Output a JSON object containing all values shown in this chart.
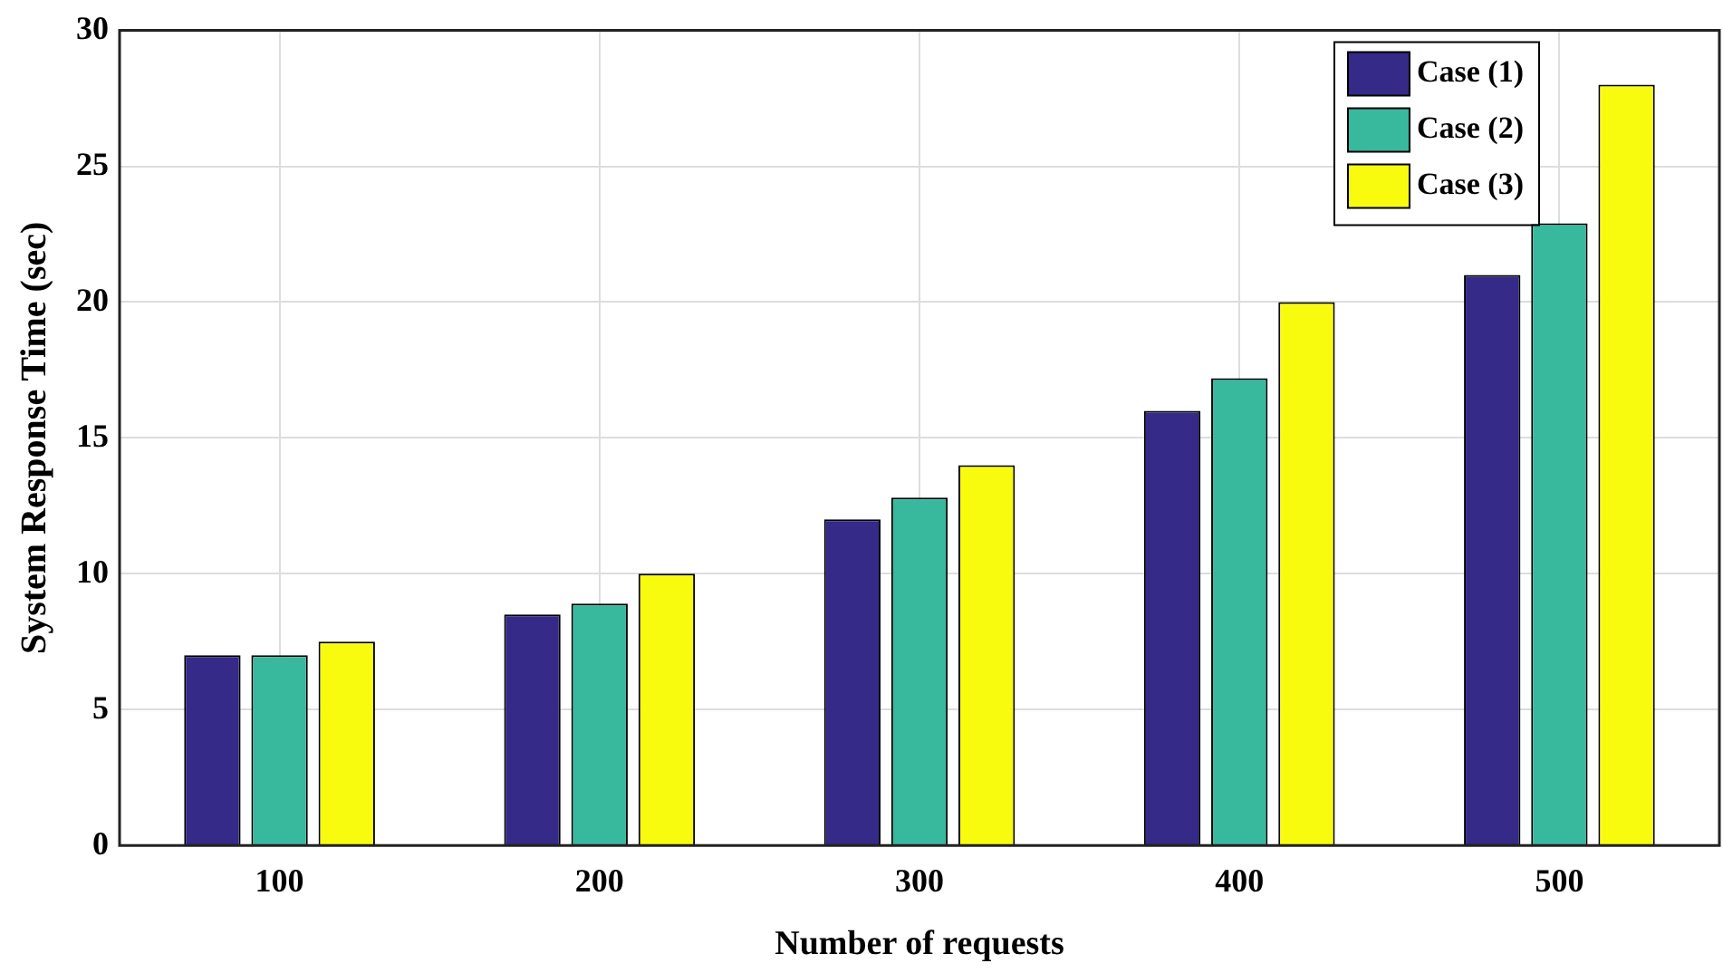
{
  "chart_data": {
    "type": "bar",
    "xlabel": "Number of requests",
    "ylabel": "System Response Time (sec)",
    "categories": [
      "100",
      "200",
      "300",
      "400",
      "500"
    ],
    "series": [
      {
        "name": "Case (1)",
        "color": "#352a87",
        "values": [
          7,
          8.5,
          12,
          16,
          21
        ]
      },
      {
        "name": "Case (2)",
        "color": "#38b99e",
        "values": [
          7,
          8.9,
          12.8,
          17.2,
          22.9
        ]
      },
      {
        "name": "Case (3)",
        "color": "#f9fb0e",
        "values": [
          7.5,
          10,
          14,
          20,
          28
        ]
      }
    ],
    "ylim": [
      0,
      30
    ],
    "yticks": [
      0,
      5,
      10,
      15,
      20,
      25,
      30
    ],
    "grid": true,
    "legend": "top right"
  }
}
